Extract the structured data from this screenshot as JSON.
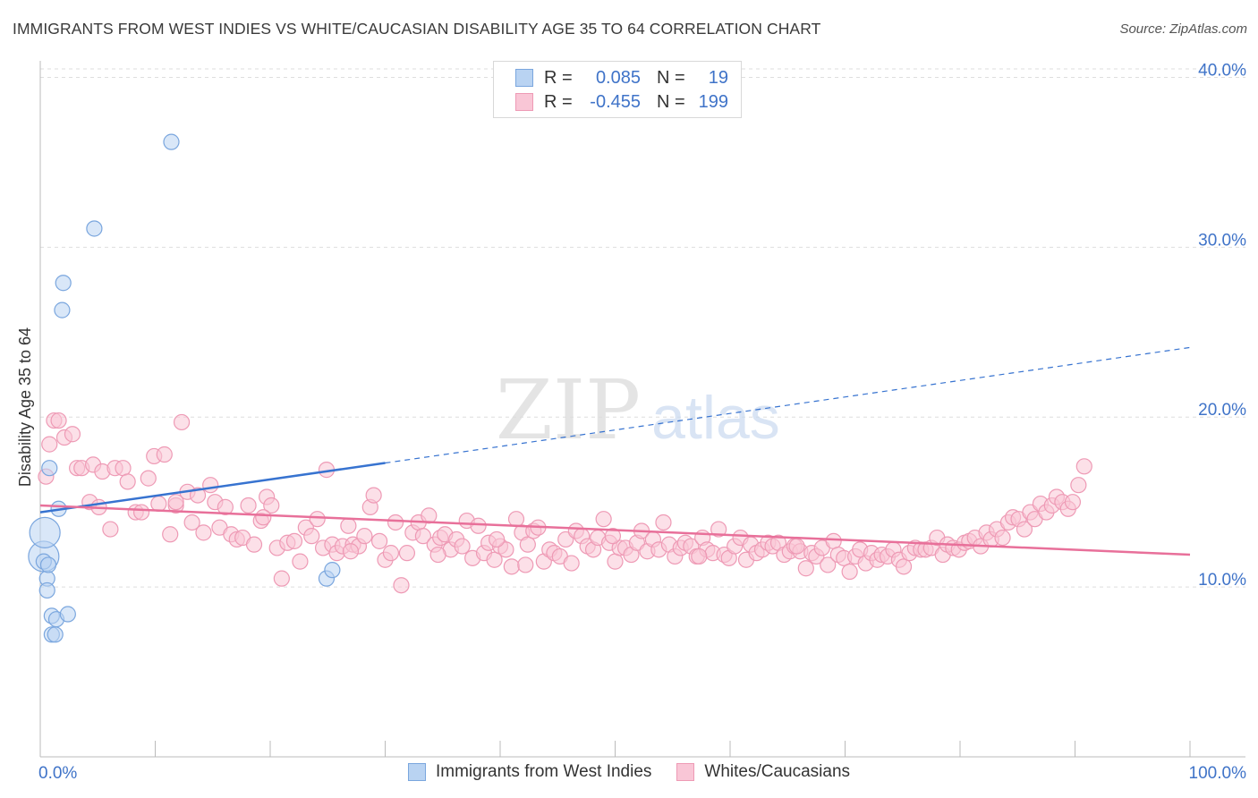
{
  "title": "IMMIGRANTS FROM WEST INDIES VS WHITE/CAUCASIAN DISABILITY AGE 35 TO 64 CORRELATION CHART",
  "source": "Source: ZipAtlas.com",
  "watermark": {
    "zip": "ZIP",
    "atlas": "atlas"
  },
  "legend": {
    "rows": [
      {
        "r_label": "R =",
        "r_value": "0.085",
        "n_label": "N =",
        "n_value": "19",
        "fill": "#b9d3f2",
        "stroke": "#7aa6de"
      },
      {
        "r_label": "R =",
        "r_value": "-0.455",
        "n_label": "N =",
        "n_value": "199",
        "fill": "#f9c6d6",
        "stroke": "#ee9ab5"
      }
    ]
  },
  "bottom_legend": {
    "items": [
      {
        "label": "Immigrants from West Indies",
        "fill": "#b9d3f2",
        "stroke": "#7aa6de"
      },
      {
        "label": "Whites/Caucasians",
        "fill": "#f9c6d6",
        "stroke": "#ee9ab5"
      }
    ]
  },
  "chart_data": {
    "type": "scatter",
    "ylabel": "Disability Age 35 to 64",
    "xlabel": "",
    "xlim": [
      0,
      100
    ],
    "ylim": [
      0,
      40.5
    ],
    "x_tick_labels": [
      {
        "value": 0,
        "label": "0.0%"
      },
      {
        "value": 100,
        "label": "100.0%"
      }
    ],
    "y_ticks": [
      {
        "value": 10,
        "label": "10.0%"
      },
      {
        "value": 20,
        "label": "20.0%"
      },
      {
        "value": 30,
        "label": "30.0%"
      },
      {
        "value": 40,
        "label": "40.0%"
      }
    ],
    "grid": "horizontal dashed",
    "series": [
      {
        "name": "Immigrants from West Indies",
        "color": "#b9d3f2",
        "stroke": "#7aa6de",
        "line_color": "#3773d0",
        "trend": {
          "x0": 0,
          "y0": 14.4,
          "x_solid_end": 30,
          "y_solid_end": 17.3,
          "x1": 100,
          "y1": 24.1
        },
        "points": [
          [
            0.3,
            11.8
          ],
          [
            0.3,
            11.5
          ],
          [
            0.4,
            13.2
          ],
          [
            0.6,
            10.5
          ],
          [
            0.6,
            9.8
          ],
          [
            0.7,
            11.3
          ],
          [
            0.8,
            17.0
          ],
          [
            1.0,
            8.3
          ],
          [
            1.0,
            7.2
          ],
          [
            1.3,
            7.2
          ],
          [
            1.4,
            8.1
          ],
          [
            1.6,
            14.6
          ],
          [
            1.9,
            26.3
          ],
          [
            2.0,
            27.9
          ],
          [
            2.4,
            8.4
          ],
          [
            4.7,
            31.1
          ],
          [
            11.4,
            36.2
          ],
          [
            24.9,
            10.5
          ],
          [
            25.4,
            11.0
          ]
        ]
      },
      {
        "name": "Whites/Caucasians",
        "color": "#f9c6d6",
        "stroke": "#ee9ab5",
        "line_color": "#e8709a",
        "trend": {
          "x0": 0,
          "y0": 14.8,
          "x1": 100,
          "y1": 11.9
        },
        "points": [
          [
            0.5,
            16.5
          ],
          [
            0.8,
            18.4
          ],
          [
            1.2,
            19.8
          ],
          [
            1.6,
            19.8
          ],
          [
            2.1,
            18.8
          ],
          [
            2.8,
            19.0
          ],
          [
            3.2,
            17.0
          ],
          [
            3.6,
            17.0
          ],
          [
            4.3,
            15.0
          ],
          [
            4.6,
            17.2
          ],
          [
            5.1,
            14.7
          ],
          [
            5.4,
            16.8
          ],
          [
            6.1,
            13.4
          ],
          [
            6.5,
            17.0
          ],
          [
            7.2,
            17.0
          ],
          [
            7.6,
            16.2
          ],
          [
            8.3,
            14.4
          ],
          [
            8.8,
            14.4
          ],
          [
            9.4,
            16.4
          ],
          [
            9.9,
            17.7
          ],
          [
            10.3,
            14.9
          ],
          [
            10.8,
            17.8
          ],
          [
            11.3,
            13.1
          ],
          [
            11.8,
            14.8
          ],
          [
            12.3,
            19.7
          ],
          [
            12.8,
            15.6
          ],
          [
            13.2,
            13.8
          ],
          [
            13.7,
            15.4
          ],
          [
            14.2,
            13.2
          ],
          [
            14.8,
            16.0
          ],
          [
            15.2,
            15.0
          ],
          [
            15.6,
            13.5
          ],
          [
            16.1,
            14.7
          ],
          [
            16.6,
            13.1
          ],
          [
            17.1,
            12.8
          ],
          [
            17.6,
            12.9
          ],
          [
            18.1,
            14.8
          ],
          [
            18.6,
            12.5
          ],
          [
            19.2,
            13.9
          ],
          [
            19.7,
            15.3
          ],
          [
            20.1,
            14.8
          ],
          [
            20.6,
            12.3
          ],
          [
            21.0,
            10.5
          ],
          [
            21.5,
            12.6
          ],
          [
            22.1,
            12.7
          ],
          [
            22.6,
            11.5
          ],
          [
            23.1,
            13.5
          ],
          [
            23.6,
            13.0
          ],
          [
            24.1,
            14.0
          ],
          [
            24.6,
            12.3
          ],
          [
            24.9,
            16.9
          ],
          [
            25.4,
            12.5
          ],
          [
            25.8,
            12.0
          ],
          [
            26.3,
            12.4
          ],
          [
            26.8,
            13.6
          ],
          [
            27.2,
            12.5
          ],
          [
            27.7,
            12.4
          ],
          [
            28.2,
            13.0
          ],
          [
            28.7,
            14.7
          ],
          [
            29.0,
            15.4
          ],
          [
            29.5,
            12.7
          ],
          [
            30.0,
            11.6
          ],
          [
            30.5,
            12.0
          ],
          [
            30.9,
            13.8
          ],
          [
            31.4,
            10.1
          ],
          [
            31.9,
            12.0
          ],
          [
            32.4,
            13.2
          ],
          [
            32.9,
            13.8
          ],
          [
            33.3,
            13.0
          ],
          [
            33.8,
            14.2
          ],
          [
            34.3,
            12.5
          ],
          [
            34.8,
            12.9
          ],
          [
            35.2,
            13.1
          ],
          [
            35.7,
            12.2
          ],
          [
            36.2,
            12.8
          ],
          [
            36.7,
            12.4
          ],
          [
            37.1,
            13.9
          ],
          [
            37.6,
            11.7
          ],
          [
            38.1,
            13.6
          ],
          [
            38.6,
            12.0
          ],
          [
            39.0,
            12.6
          ],
          [
            39.5,
            11.6
          ],
          [
            40.0,
            12.4
          ],
          [
            40.5,
            12.2
          ],
          [
            41.0,
            11.2
          ],
          [
            41.4,
            14.0
          ],
          [
            41.9,
            13.2
          ],
          [
            42.4,
            12.5
          ],
          [
            42.9,
            13.3
          ],
          [
            43.3,
            13.5
          ],
          [
            43.8,
            11.5
          ],
          [
            44.3,
            12.2
          ],
          [
            44.7,
            12.0
          ],
          [
            45.2,
            11.8
          ],
          [
            45.7,
            12.8
          ],
          [
            46.2,
            11.4
          ],
          [
            46.6,
            13.3
          ],
          [
            47.1,
            13.0
          ],
          [
            47.6,
            12.4
          ],
          [
            48.1,
            12.2
          ],
          [
            48.5,
            12.9
          ],
          [
            49.0,
            14.0
          ],
          [
            49.5,
            12.6
          ],
          [
            50.0,
            11.5
          ],
          [
            50.4,
            12.3
          ],
          [
            50.9,
            12.3
          ],
          [
            51.4,
            11.9
          ],
          [
            51.9,
            12.6
          ],
          [
            52.3,
            13.3
          ],
          [
            52.8,
            12.1
          ],
          [
            53.3,
            12.8
          ],
          [
            53.8,
            12.2
          ],
          [
            54.2,
            13.8
          ],
          [
            54.7,
            12.5
          ],
          [
            55.2,
            11.8
          ],
          [
            55.7,
            12.3
          ],
          [
            56.1,
            12.6
          ],
          [
            56.6,
            12.4
          ],
          [
            57.1,
            11.8
          ],
          [
            57.6,
            12.9
          ],
          [
            58.0,
            12.2
          ],
          [
            58.5,
            12.0
          ],
          [
            59.0,
            13.4
          ],
          [
            59.5,
            11.9
          ],
          [
            59.9,
            11.7
          ],
          [
            60.4,
            12.4
          ],
          [
            60.9,
            12.9
          ],
          [
            61.4,
            11.6
          ],
          [
            61.8,
            12.5
          ],
          [
            62.3,
            12.0
          ],
          [
            62.8,
            12.2
          ],
          [
            63.3,
            12.6
          ],
          [
            63.7,
            12.4
          ],
          [
            64.2,
            12.6
          ],
          [
            64.7,
            11.9
          ],
          [
            65.2,
            12.1
          ],
          [
            65.6,
            12.4
          ],
          [
            66.1,
            12.1
          ],
          [
            66.6,
            11.1
          ],
          [
            67.1,
            12.0
          ],
          [
            67.5,
            11.8
          ],
          [
            68.0,
            12.3
          ],
          [
            68.5,
            11.3
          ],
          [
            69.0,
            12.7
          ],
          [
            69.4,
            11.9
          ],
          [
            69.9,
            11.7
          ],
          [
            70.4,
            10.9
          ],
          [
            70.9,
            11.8
          ],
          [
            71.3,
            12.2
          ],
          [
            71.8,
            11.4
          ],
          [
            72.3,
            12.0
          ],
          [
            72.8,
            11.6
          ],
          [
            73.2,
            11.9
          ],
          [
            73.7,
            11.8
          ],
          [
            74.2,
            12.2
          ],
          [
            74.7,
            11.6
          ],
          [
            75.1,
            11.2
          ],
          [
            75.6,
            12.0
          ],
          [
            76.1,
            12.3
          ],
          [
            76.6,
            12.2
          ],
          [
            77.0,
            12.2
          ],
          [
            77.5,
            12.3
          ],
          [
            78.0,
            12.9
          ],
          [
            78.5,
            11.9
          ],
          [
            78.9,
            12.5
          ],
          [
            79.4,
            12.3
          ],
          [
            79.9,
            12.2
          ],
          [
            80.4,
            12.6
          ],
          [
            80.8,
            12.7
          ],
          [
            81.3,
            12.9
          ],
          [
            81.8,
            12.4
          ],
          [
            82.3,
            13.2
          ],
          [
            82.7,
            12.8
          ],
          [
            83.2,
            13.4
          ],
          [
            83.7,
            12.9
          ],
          [
            84.2,
            13.8
          ],
          [
            84.6,
            14.1
          ],
          [
            85.1,
            14.0
          ],
          [
            85.6,
            13.4
          ],
          [
            86.1,
            14.4
          ],
          [
            86.5,
            14.0
          ],
          [
            87.0,
            14.9
          ],
          [
            87.5,
            14.4
          ],
          [
            88.0,
            14.8
          ],
          [
            88.4,
            15.3
          ],
          [
            88.9,
            15.0
          ],
          [
            89.4,
            14.6
          ],
          [
            89.8,
            15.0
          ],
          [
            90.3,
            16.0
          ],
          [
            90.8,
            17.1
          ],
          [
            65.8,
            12.4
          ],
          [
            57.3,
            11.8
          ],
          [
            49.8,
            13.0
          ],
          [
            42.2,
            11.3
          ],
          [
            34.6,
            11.9
          ],
          [
            27.0,
            12.1
          ],
          [
            19.4,
            14.1
          ],
          [
            11.8,
            15.0
          ],
          [
            39.7,
            12.8
          ]
        ]
      }
    ]
  }
}
